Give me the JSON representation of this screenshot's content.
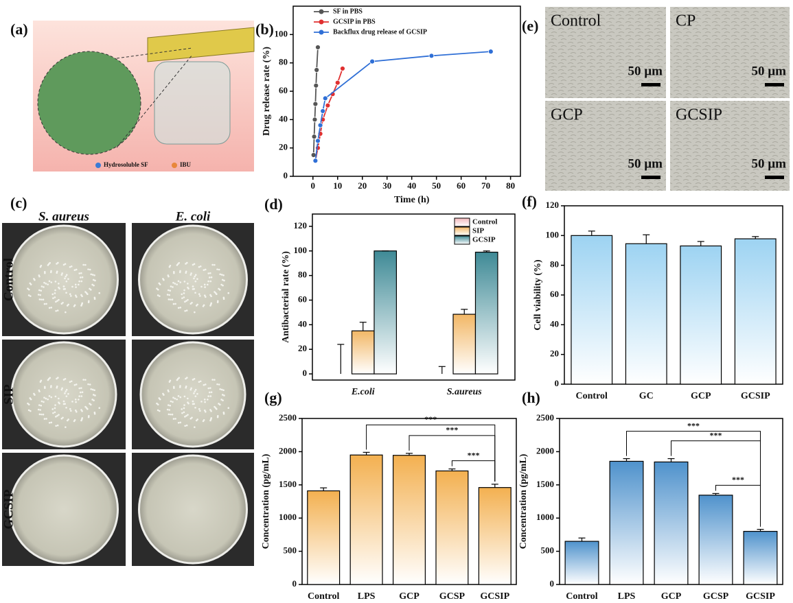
{
  "panels": {
    "labels": [
      "(a)",
      "(b)",
      "(c)",
      "(d)",
      "(e)",
      "(f)",
      "(g)",
      "(h)"
    ],
    "a": {
      "legend": [
        "Hydrosoluble SF",
        "IBU"
      ]
    },
    "c": {
      "columns": [
        "S. aureus",
        "E. coli"
      ],
      "rows": [
        "Control",
        "SIP",
        "GCSIP"
      ]
    },
    "e": {
      "tiles": [
        "Control",
        "CP",
        "GCP",
        "GCSIP"
      ],
      "scale": [
        "50 µm",
        "50 µm",
        "50 µm",
        "50 µm"
      ]
    }
  },
  "chart_data": [
    {
      "type": "line",
      "xlabel": "Time (h)",
      "ylabel": "Drug release rate (%)",
      "xlim": [
        -8,
        84
      ],
      "xticks": [
        0,
        10,
        20,
        30,
        40,
        50,
        60,
        70,
        80
      ],
      "ylim": [
        0,
        120
      ],
      "yticks": [
        0,
        20,
        40,
        60,
        80,
        100
      ],
      "series": [
        {
          "name": "SF in PBS",
          "color": "#555555",
          "x": [
            0.25,
            0.5,
            0.75,
            1,
            1.25,
            1.5,
            2
          ],
          "values": [
            15,
            28,
            40,
            51,
            64,
            75,
            91
          ]
        },
        {
          "name": "GCSIP in PBS",
          "color": "#e03030",
          "x": [
            1,
            2,
            3,
            4,
            6,
            8,
            10,
            12
          ],
          "values": [
            11,
            20,
            30,
            40,
            50,
            58,
            66,
            76
          ]
        },
        {
          "name": "Backflux drug release of GCSIP",
          "color": "#2f6fd6",
          "x": [
            1,
            2,
            3,
            4,
            5,
            24,
            48,
            72
          ],
          "values": [
            11,
            25,
            36,
            46,
            55,
            81,
            85,
            88
          ]
        }
      ]
    },
    {
      "type": "bar",
      "ylabel": "Antibacterial rate (%)",
      "categories": [
        "E.coli",
        "S.aureus"
      ],
      "ylim": [
        -5,
        130
      ],
      "yticks": [
        0,
        20,
        40,
        60,
        80,
        100,
        120
      ],
      "series": [
        {
          "name": "Control",
          "color": "#f2b8bc",
          "values": [
            0,
            0
          ],
          "errors": [
            24,
            6
          ]
        },
        {
          "name": "SIP",
          "color": "#f2b766",
          "values": [
            35,
            48.5
          ],
          "errors": [
            7,
            4
          ]
        },
        {
          "name": "GCSIP",
          "color": "#3f8a96",
          "values": [
            100,
            99
          ],
          "errors": [
            0,
            1
          ]
        }
      ]
    },
    {
      "type": "bar",
      "ylabel": "Cell viability (%)",
      "categories": [
        "Control",
        "GC",
        "GCP",
        "GCSIP"
      ],
      "ylim": [
        0,
        120
      ],
      "yticks": [
        0,
        20,
        40,
        60,
        80,
        100,
        120
      ],
      "color": "#9dd3f2",
      "values": [
        100,
        94.5,
        93,
        97.8
      ],
      "errors": [
        3,
        6,
        3,
        1.5
      ]
    },
    {
      "type": "bar",
      "ylabel": "Concentration (pg/mL)",
      "categories": [
        "Control",
        "LPS",
        "GCP",
        "GCSP",
        "GCSIP"
      ],
      "ylim": [
        0,
        2500
      ],
      "yticks": [
        0,
        500,
        1000,
        1500,
        2000,
        2500
      ],
      "color": "#f3b050",
      "values": [
        1410,
        1950,
        1945,
        1710,
        1460
      ],
      "errors": [
        45,
        40,
        30,
        30,
        50
      ],
      "annotations": [
        "***",
        "***",
        "***"
      ]
    },
    {
      "type": "bar",
      "ylabel": "Concentration (pg/mL)",
      "categories": [
        "Control",
        "LPS",
        "GCP",
        "GCSP",
        "GCSIP"
      ],
      "ylim": [
        0,
        2500
      ],
      "yticks": [
        0,
        500,
        1000,
        1500,
        2000,
        2500
      ],
      "color": "#4f92cc",
      "values": [
        650,
        1855,
        1845,
        1345,
        800
      ],
      "errors": [
        50,
        40,
        50,
        25,
        30
      ],
      "annotations": [
        "***",
        "***",
        "***"
      ]
    }
  ]
}
